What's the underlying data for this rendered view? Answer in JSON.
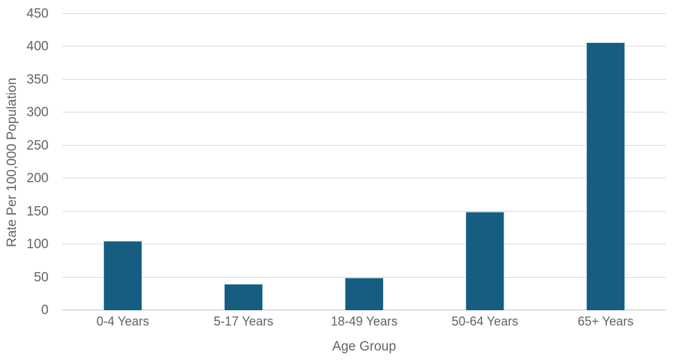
{
  "chart_data": {
    "type": "bar",
    "title": "",
    "categories": [
      "0-4 Years",
      "5-17 Years",
      "18-49 Years",
      "50-64 Years",
      "65+ Years"
    ],
    "values": [
      105,
      40,
      50,
      150,
      407
    ],
    "xlabel": "Age Group",
    "ylabel": "Rate Per 100,000 Population",
    "ylim": [
      0,
      450
    ],
    "yticks": [
      0,
      50,
      100,
      150,
      200,
      250,
      300,
      350,
      400,
      450
    ],
    "grid": true,
    "legend": false,
    "colors": {
      "bar_fill": "#155E82",
      "bar_border": "#B6D2DF",
      "gridline": "#D9D9D9",
      "axis_line": "#C0C0C0",
      "text": "#636363",
      "background": "#FFFFFF"
    }
  }
}
